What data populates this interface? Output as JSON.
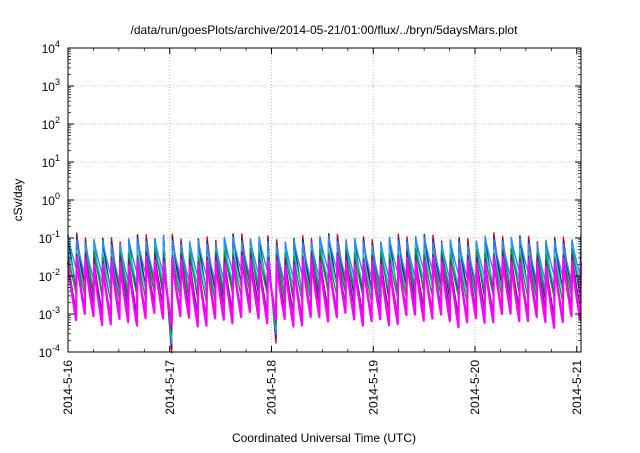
{
  "chart_data": {
    "type": "line",
    "title": "/data/run/goesPlots/archive/2014-05-21/01:00/flux/../bryn/5daysMars.plot",
    "xlabel": "Coordinated Universal Time (UTC)",
    "ylabel": "cSv/day",
    "yscale": "log",
    "ylim": [
      0.0001,
      10000
    ],
    "xlim": [
      "2014-05-16 00:00",
      "2014-05-21 01:00"
    ],
    "grid": true,
    "legend": "none",
    "y_ticks": [
      {
        "base": "10",
        "exp": "-4",
        "value": 0.0001
      },
      {
        "base": "10",
        "exp": "-3",
        "value": 0.001
      },
      {
        "base": "10",
        "exp": "-2",
        "value": 0.01
      },
      {
        "base": "10",
        "exp": "-1",
        "value": 0.1
      },
      {
        "base": "10",
        "exp": "0",
        "value": 1
      },
      {
        "base": "10",
        "exp": "1",
        "value": 10
      },
      {
        "base": "10",
        "exp": "2",
        "value": 100
      },
      {
        "base": "10",
        "exp": "3",
        "value": 1000
      },
      {
        "base": "10",
        "exp": "4",
        "value": 10000
      }
    ],
    "x_ticks": [
      {
        "label": "2014-5-16",
        "value": "2014-05-16 00:00"
      },
      {
        "label": "2014-5-17",
        "value": "2014-05-17 00:00"
      },
      {
        "label": "2014-5-18",
        "value": "2014-05-18 00:00"
      },
      {
        "label": "2014-5-19",
        "value": "2014-05-19 00:00"
      },
      {
        "label": "2014-5-20",
        "value": "2014-05-20 00:00"
      },
      {
        "label": "2014-5-21",
        "value": "2014-05-21 00:00"
      }
    ],
    "cycle_hours": 2.05,
    "cycle_start": "2014-05-16 00:00",
    "gap_recoveries": [
      {
        "time": "2014-05-17 00:05",
        "y_min": 0.0005
      },
      {
        "time": "2014-05-18 00:05",
        "y_min": 0.0009
      }
    ],
    "series": [
      {
        "color": "#ee0000",
        "peak": 0.1,
        "trough": 0.004
      },
      {
        "color": "#1a2a8a",
        "peak": 0.092,
        "trough": 0.0035
      },
      {
        "color": "#2a8aff",
        "peak": 0.085,
        "trough": 0.01
      },
      {
        "color": "#18c8c8",
        "peak": 0.05,
        "trough": 0.005
      },
      {
        "color": "#0a9a3a",
        "peak": 0.04,
        "trough": 0.0032
      },
      {
        "color": "#6a1a8a",
        "peak": 0.032,
        "trough": 0.0012
      },
      {
        "color": "#ff00ff",
        "peak": 0.024,
        "trough": 0.0007
      }
    ]
  }
}
